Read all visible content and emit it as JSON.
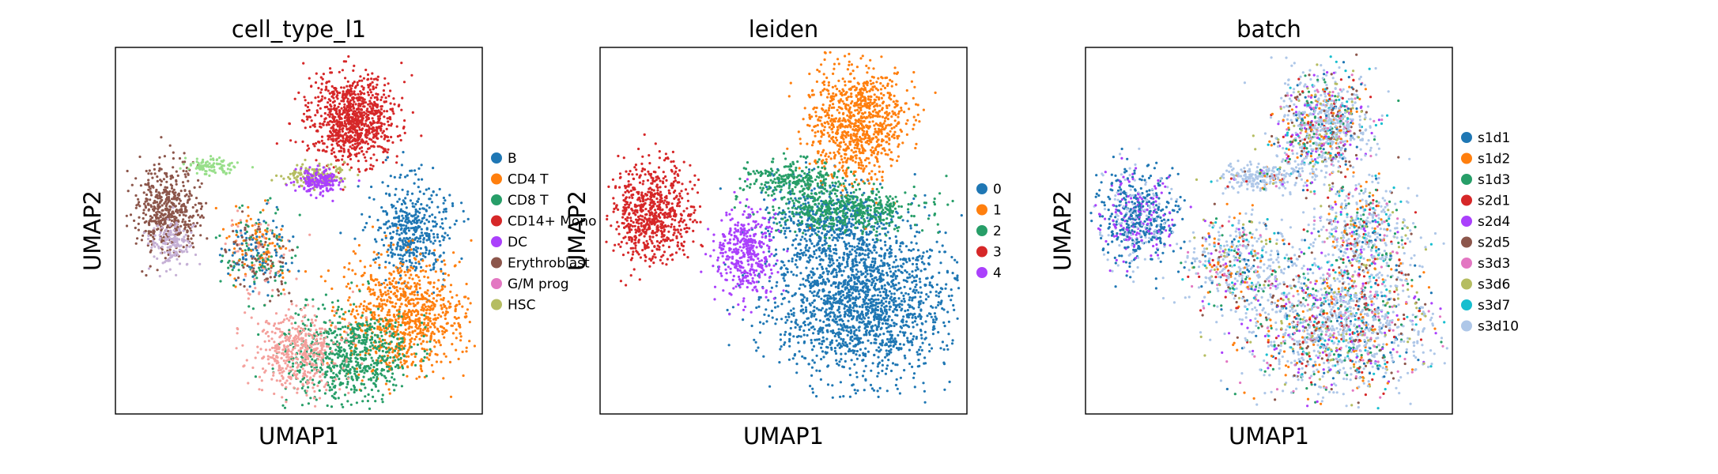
{
  "chart_data": [
    {
      "type": "scatter",
      "title": "cell_type_l1",
      "xlabel": "UMAP1",
      "ylabel": "UMAP2",
      "ticks": "none",
      "legend_position": "right",
      "categories": [
        "B",
        "CD4 T",
        "CD8 T",
        "CD14+ Mono",
        "DC",
        "Erythroblast",
        "G/M prog",
        "HSC"
      ],
      "colors": [
        "#1f77b4",
        "#ff7f0e",
        "#279e68",
        "#d62728",
        "#aa40fc",
        "#8c564b",
        "#e377c2",
        "#b5bd61"
      ],
      "extra_colors": [
        "#f4a09c",
        "#c5b0d5",
        "#98df8a"
      ]
    },
    {
      "type": "scatter",
      "title": "leiden",
      "xlabel": "UMAP1",
      "ylabel": "UMAP2",
      "ticks": "none",
      "legend_position": "right",
      "categories": [
        "0",
        "1",
        "2",
        "3",
        "4"
      ],
      "colors": [
        "#1f77b4",
        "#ff7f0e",
        "#279e68",
        "#d62728",
        "#aa40fc"
      ]
    },
    {
      "type": "scatter",
      "title": "batch",
      "xlabel": "UMAP1",
      "ylabel": "UMAP2",
      "ticks": "none",
      "legend_position": "right",
      "categories": [
        "s1d1",
        "s1d2",
        "s1d3",
        "s2d1",
        "s2d4",
        "s2d5",
        "s3d3",
        "s3d6",
        "s3d7",
        "s3d10"
      ],
      "colors": [
        "#1f77b4",
        "#ff7f0e",
        "#279e68",
        "#d62728",
        "#aa40fc",
        "#8c564b",
        "#e377c2",
        "#b5bd61",
        "#17becf",
        "#aec7e8"
      ]
    }
  ]
}
